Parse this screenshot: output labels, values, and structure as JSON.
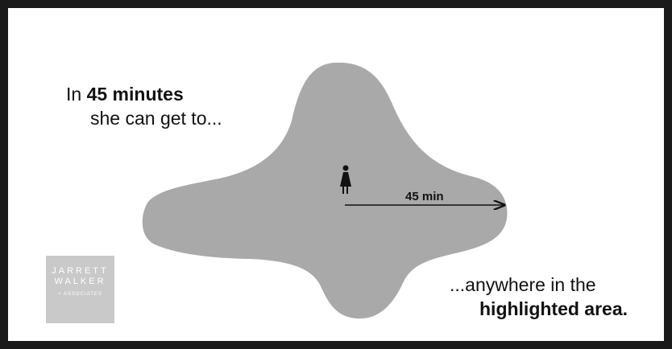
{
  "caption_top": {
    "prefix": "In ",
    "emphasis": "45 minutes",
    "line2": "she can get to..."
  },
  "caption_bottom": {
    "line1": "...anywhere in the",
    "emphasis": "highlighted area."
  },
  "arrow_label": "45 min",
  "logo": {
    "line1": "JARRETT",
    "line2": "WALKER",
    "line3": "+ ASSOCIATES"
  },
  "colors": {
    "area": "#a9a9a9",
    "frame": "#1a1a1a",
    "text": "#111111",
    "logo_bg": "#c9c9c9"
  },
  "icons": {
    "person": "person-icon",
    "arrow": "arrow-right"
  }
}
